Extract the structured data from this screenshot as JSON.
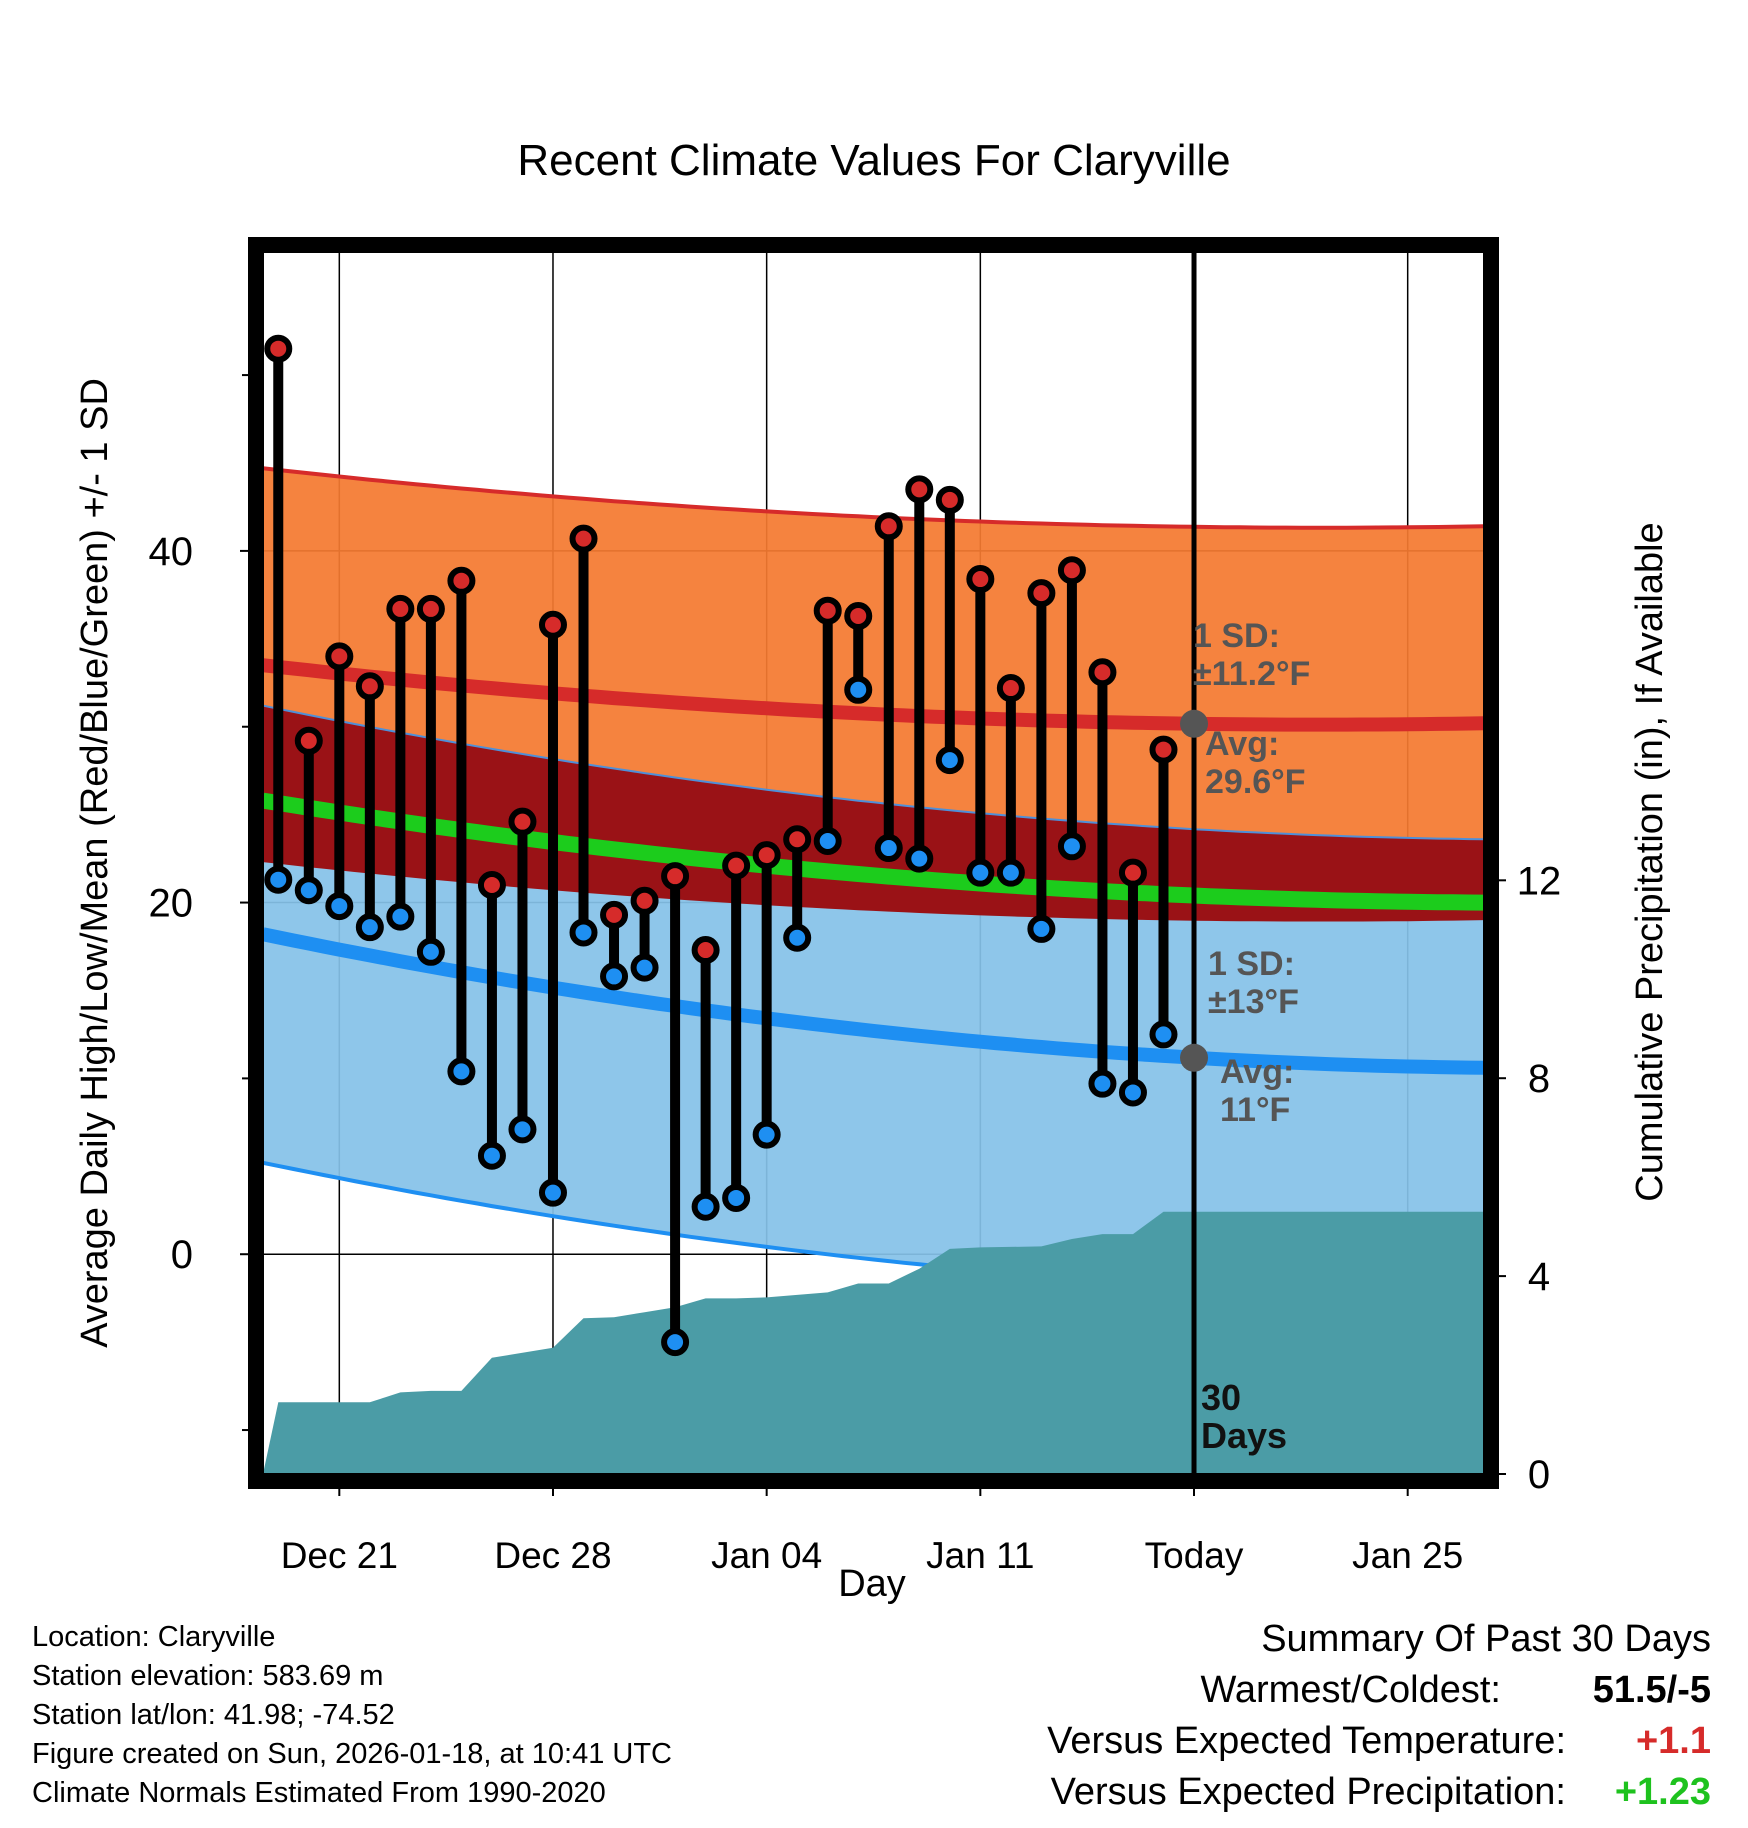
{
  "chart_data": {
    "type": "climate-range",
    "title": "Recent Climate Values For Claryville",
    "xlabel": "Day",
    "ylabel_left": "Average Daily High/Low/Mean (Red/Blue/Green) +/- 1 SD",
    "ylabel_right": "Cumulative Precipitation (in), If Available",
    "x_ticks": [
      "Dec 21",
      "Dec 28",
      "Jan 04",
      "Jan 11",
      "Today",
      "Jan 25"
    ],
    "x_tick_days": [
      2.5,
      9.5,
      16.5,
      23.5,
      30.5,
      37.5
    ],
    "xlim": [
      0,
      40
    ],
    "y_left_ticks": [
      "0",
      "20",
      "40"
    ],
    "y_left_tick_values": [
      0,
      20,
      40
    ],
    "y_left_minor": [
      -10,
      10,
      30,
      50
    ],
    "ylim_left": [
      -12.5,
      57
    ],
    "y_right_ticks": [
      "0",
      "4",
      "8",
      "12"
    ],
    "y_right_tick_values": [
      0,
      4,
      8,
      12
    ],
    "ylim_right": [
      0,
      24.7
    ],
    "normals": {
      "high_mean": [
        33.5,
        29.6,
        30.2
      ],
      "high_sd": 11.2,
      "low_mean": [
        18.2,
        11.0,
        10.6
      ],
      "low_sd": 13.0,
      "mean_temp": [
        25.8,
        20.2,
        20.0
      ]
    },
    "highs": [
      51.5,
      29.2,
      34.0,
      32.3,
      36.7,
      36.7,
      38.3,
      21.0,
      24.6,
      35.8,
      40.7,
      19.3,
      20.1,
      21.5,
      17.3,
      22.1,
      22.7,
      23.6,
      36.6,
      36.3,
      41.4,
      43.5,
      42.9,
      38.4,
      32.2,
      37.6,
      38.9,
      33.1,
      21.7,
      28.7
    ],
    "lows": [
      21.3,
      20.7,
      19.8,
      18.6,
      19.2,
      17.2,
      10.4,
      5.6,
      7.1,
      3.5,
      18.3,
      15.8,
      16.3,
      -5.0,
      2.7,
      3.2,
      6.8,
      18.0,
      23.5,
      32.1,
      23.1,
      22.5,
      28.1,
      21.7,
      21.7,
      18.5,
      23.2,
      9.7,
      9.2,
      12.5
    ],
    "precip_days": [
      0.5,
      1.5,
      3.5,
      4.5,
      5.5,
      6.5,
      7.5,
      8.5,
      9.5,
      10.5,
      11.5,
      12.5,
      13.5,
      14.5,
      15.5,
      16.5,
      17.5,
      18.5,
      19.5,
      20.5,
      21.5,
      22.5,
      23.5,
      25.5,
      26.5,
      27.5,
      28.5,
      29.5,
      30.5,
      40.0
    ],
    "precip_cum": [
      1.45,
      1.45,
      1.45,
      1.65,
      1.68,
      1.68,
      2.35,
      2.45,
      2.55,
      3.15,
      3.17,
      3.27,
      3.37,
      3.55,
      3.55,
      3.57,
      3.62,
      3.67,
      3.85,
      3.85,
      4.15,
      4.55,
      4.58,
      4.6,
      4.75,
      4.85,
      4.85,
      5.3,
      5.3,
      5.3
    ],
    "today_label": [
      "30",
      "Days"
    ],
    "annotations": {
      "high_sd": [
        "1 SD:",
        "±11.2°F"
      ],
      "high_avg": [
        "Avg:",
        "29.6°F"
      ],
      "low_sd": [
        "1 SD:",
        "±13°F"
      ],
      "low_avg": [
        "Avg:",
        "11°F"
      ]
    },
    "colors": {
      "high_band": "#f47a30",
      "high_line": "#d62b2a",
      "low_band": "#85c2e8",
      "low_line": "#1e8ff2",
      "overlap_band": "#9a1216",
      "mean_line": "#1ccc1c",
      "precip": "#4b9ca6",
      "annotation": "#555555"
    }
  },
  "info": {
    "location": "Location: Claryville",
    "elevation": "Station elevation: 583.69 m",
    "latlon": "Station lat/lon: 41.98; -74.52",
    "created": "Figure created on Sun, 2026-01-18, at 10:41 UTC",
    "normals": "Climate Normals Estimated From 1990-2020"
  },
  "summary": {
    "title": "Summary Of Past 30 Days",
    "warmest_label": "Warmest/Coldest:",
    "warmest_value": "51.5/-5",
    "temp_label": "Versus Expected Temperature:",
    "temp_value": "+1.1",
    "temp_color": "#d62b2a",
    "precip_label": "Versus Expected Precipitation:",
    "precip_value": "+1.23",
    "precip_color": "#1ec21e"
  }
}
